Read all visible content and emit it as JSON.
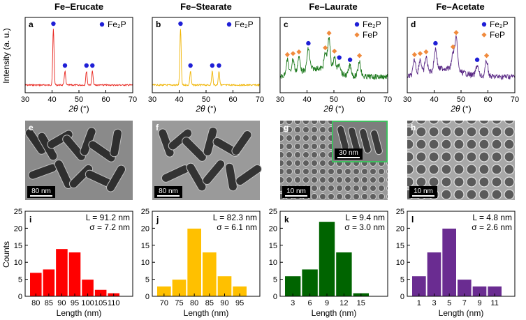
{
  "column_titles": [
    "Fe–Erucate",
    "Fe–Stearate",
    "Fe–Laurate",
    "Fe–Acetate"
  ],
  "xrd": {
    "ylabel": "Intensity (a. u.)",
    "xlabel_var": "2θ",
    "xlabel_unit": " (°)",
    "ticks": [
      "30",
      "40",
      "50",
      "60",
      "70"
    ],
    "xlim": [
      30,
      70
    ],
    "legend_fe2p": "Fe₂P",
    "legend_fep": "FeP",
    "panels": [
      {
        "label": "a",
        "color": "#e8261f",
        "fe2p": [
          40.5,
          44.8,
          52.8,
          55.0
        ],
        "fep": []
      },
      {
        "label": "b",
        "color": "#f0b400",
        "fe2p": [
          40.5,
          44.2,
          52.3,
          54.8
        ],
        "fep": []
      },
      {
        "label": "c",
        "color": "#1e7a1e",
        "fe2p": [
          40.5,
          52.0,
          56.0
        ],
        "fep": [
          32.7,
          34.8,
          37.0,
          46.8,
          48.2,
          50.2,
          59.5
        ]
      },
      {
        "label": "d",
        "color": "#5b2a86",
        "fe2p": [
          40.5,
          56.0
        ],
        "fep": [
          32.7,
          34.8,
          37.0,
          47.0,
          48.2,
          59.5
        ]
      }
    ]
  },
  "tem": [
    {
      "label": "e",
      "scale": "80 nm"
    },
    {
      "label": "f",
      "scale": "80 nm"
    },
    {
      "label": "g",
      "scale": "10 nm",
      "inset_scale": "30 nm"
    },
    {
      "label": "h",
      "scale": "10 nm"
    }
  ],
  "chart_data": [
    {
      "type": "bar",
      "panel": "i",
      "color": "#ff0000",
      "categories": [
        "80",
        "85",
        "90",
        "95",
        "100",
        "105",
        "110"
      ],
      "values": [
        7,
        8,
        14,
        13,
        5,
        2,
        1
      ],
      "annotation_L": "L = 91.2 nm",
      "annotation_sigma": "σ = 7.2 nm",
      "xlabel": "Length (nm)",
      "ylabel": "Counts",
      "ylim": [
        0,
        25
      ],
      "yticks": [
        "0",
        "5",
        "10",
        "15",
        "20",
        "25"
      ]
    },
    {
      "type": "bar",
      "panel": "j",
      "color": "#ffc000",
      "categories": [
        "70",
        "75",
        "80",
        "85",
        "90",
        "95"
      ],
      "values": [
        3,
        5,
        20,
        13,
        6,
        3
      ],
      "annotation_L": "L = 82.3 nm",
      "annotation_sigma": "σ = 6.1 nm",
      "xlabel": "Length (nm)",
      "ylabel": "",
      "ylim": [
        0,
        25
      ],
      "yticks": [
        "0",
        "5",
        "10",
        "15",
        "20",
        "25"
      ]
    },
    {
      "type": "bar",
      "panel": "k",
      "color": "#006400",
      "categories": [
        "3",
        "6",
        "9",
        "12",
        "15"
      ],
      "values": [
        6,
        8,
        22,
        13,
        1
      ],
      "annotation_L": "L = 9.4 nm",
      "annotation_sigma": "σ = 3.0 nm",
      "xlabel": "Length (nm)",
      "ylabel": "",
      "ylim": [
        0,
        25
      ],
      "yticks": [
        "0",
        "5",
        "10",
        "15",
        "20",
        "25"
      ]
    },
    {
      "type": "bar",
      "panel": "l",
      "color": "#6a2c91",
      "categories": [
        "1",
        "3",
        "5",
        "7",
        "9",
        "11"
      ],
      "values": [
        6,
        13,
        20,
        5,
        3,
        3
      ],
      "annotation_L": "L = 4.8 nm",
      "annotation_sigma": "σ = 2.6 nm",
      "xlabel": "Length (nm)",
      "ylabel": "",
      "ylim": [
        0,
        25
      ],
      "yticks": [
        "0",
        "5",
        "10",
        "15",
        "20",
        "25"
      ]
    }
  ]
}
